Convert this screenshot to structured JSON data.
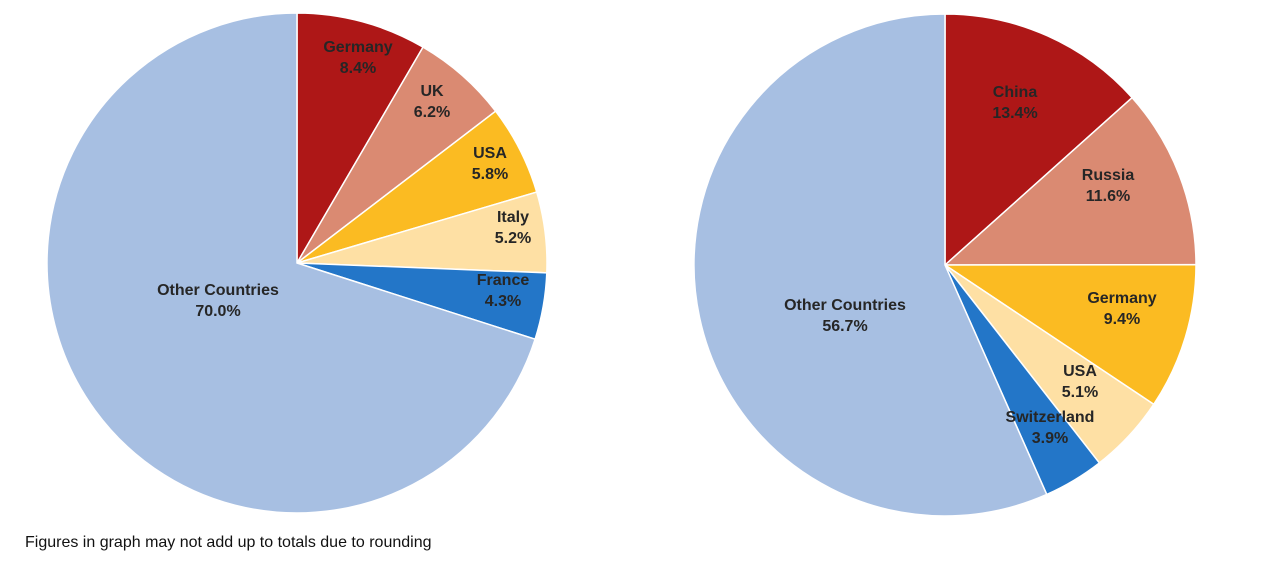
{
  "chart_data": [
    {
      "type": "pie",
      "slices": [
        {
          "label": "Germany",
          "value_text": "8.4%",
          "value": 8.4,
          "color": "#AE1717"
        },
        {
          "label": "UK",
          "value_text": "6.2%",
          "value": 6.2,
          "color": "#DA8A72"
        },
        {
          "label": "USA",
          "value_text": "5.8%",
          "value": 5.8,
          "color": "#FBBB22"
        },
        {
          "label": "Italy",
          "value_text": "5.2%",
          "value": 5.2,
          "color": "#FEE0A4"
        },
        {
          "label": "France",
          "value_text": "4.3%",
          "value": 4.3,
          "color": "#2376C8"
        },
        {
          "label": "Other Countries",
          "value_text": "70.0%",
          "value": 70.0,
          "color": "#A7BFE2"
        }
      ]
    },
    {
      "type": "pie",
      "slices": [
        {
          "label": "China",
          "value_text": "13.4%",
          "value": 13.4,
          "color": "#AE1717"
        },
        {
          "label": "Russia",
          "value_text": "11.6%",
          "value": 11.6,
          "color": "#DA8A72"
        },
        {
          "label": "Germany",
          "value_text": "9.4%",
          "value": 9.4,
          "color": "#FBBB22"
        },
        {
          "label": "USA",
          "value_text": "5.1%",
          "value": 5.1,
          "color": "#FEE0A4"
        },
        {
          "label": "Switzerland",
          "value_text": "3.9%",
          "value": 3.9,
          "color": "#2376C8"
        },
        {
          "label": "Other Countries",
          "value_text": "56.7%",
          "value": 56.7,
          "color": "#A7BFE2"
        }
      ]
    }
  ],
  "footnote": "Figures in graph may not add up to totals due to rounding"
}
